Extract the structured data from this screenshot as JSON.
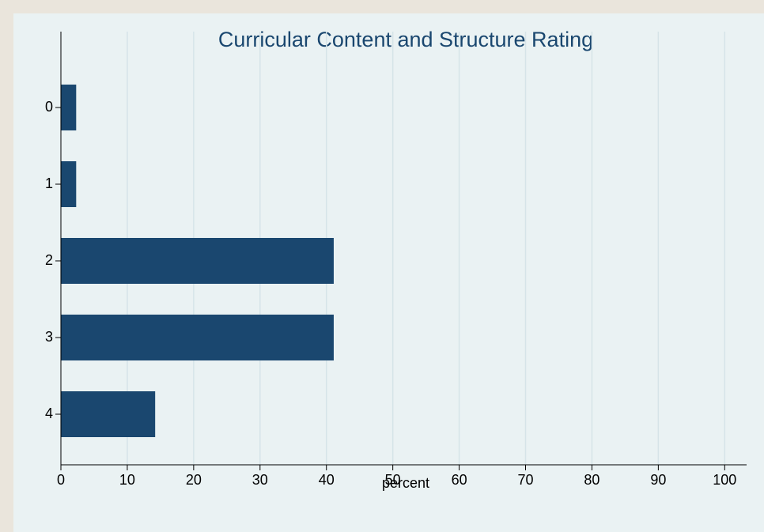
{
  "chart_data": {
    "type": "barh",
    "title": "Curricular Content and Structure Rating",
    "xlabel": "percent",
    "categories": [
      "0",
      "1",
      "2",
      "3",
      "4"
    ],
    "values": [
      2.3,
      2.3,
      41.1,
      41.1,
      14.2
    ],
    "color": "#1a476f",
    "xlim": [
      0,
      103.3
    ],
    "xticks": [
      0,
      10,
      20,
      30,
      40,
      50,
      60,
      70,
      80,
      90,
      100
    ],
    "grid": true
  }
}
